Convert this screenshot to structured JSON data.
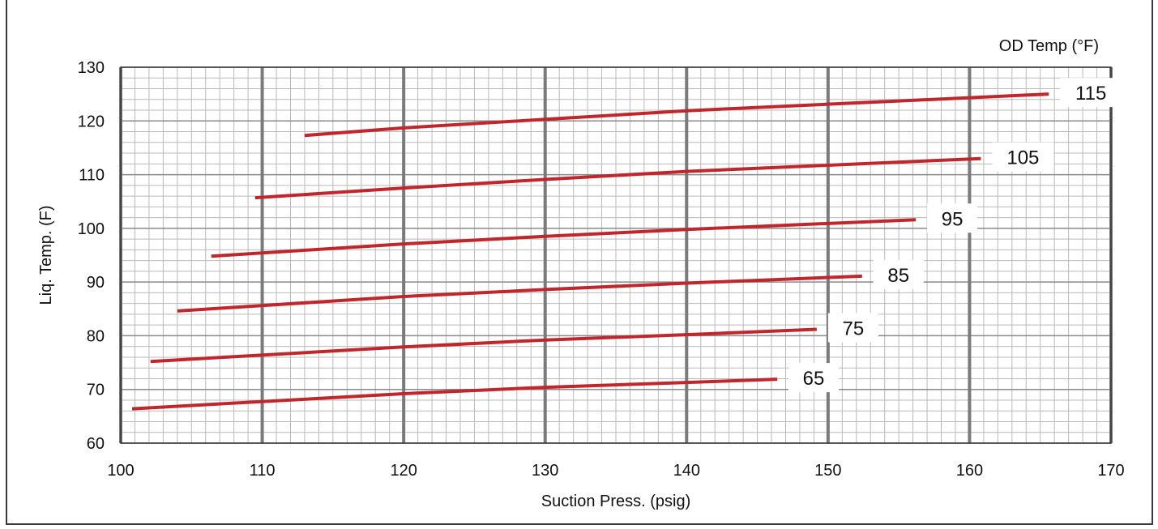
{
  "chart_data": {
    "type": "line",
    "title": "",
    "xlabel": "Suction Press. (psig)",
    "ylabel": "Liq. Temp. (F)",
    "legend_title": "OD Temp (°F)",
    "xlim": [
      100,
      170
    ],
    "ylim": [
      60,
      130
    ],
    "x_ticks": [
      100,
      110,
      120,
      130,
      140,
      150,
      160,
      170
    ],
    "y_ticks": [
      60,
      70,
      80,
      90,
      100,
      110,
      120,
      130
    ],
    "minor_grid_x": 1,
    "minor_grid_y": 2,
    "grid": true,
    "line_color": "#c0272d",
    "series": [
      {
        "name": "65",
        "points": [
          [
            100.8,
            66.4
          ],
          [
            120,
            69.2
          ],
          [
            130,
            70.4
          ],
          [
            140,
            71.3
          ],
          [
            146.4,
            71.9
          ]
        ]
      },
      {
        "name": "75",
        "points": [
          [
            102.1,
            75.2
          ],
          [
            120,
            77.9
          ],
          [
            130,
            79.2
          ],
          [
            140,
            80.2
          ],
          [
            149.2,
            81.2
          ]
        ]
      },
      {
        "name": "85",
        "points": [
          [
            104.0,
            84.6
          ],
          [
            120,
            87.3
          ],
          [
            130,
            88.6
          ],
          [
            140,
            89.8
          ],
          [
            152.4,
            91.1
          ]
        ]
      },
      {
        "name": "95",
        "points": [
          [
            106.4,
            94.8
          ],
          [
            120,
            97.1
          ],
          [
            130,
            98.5
          ],
          [
            140,
            99.8
          ],
          [
            156.2,
            101.6
          ]
        ]
      },
      {
        "name": "105",
        "points": [
          [
            109.5,
            105.7
          ],
          [
            120,
            107.5
          ],
          [
            130,
            109.1
          ],
          [
            140,
            110.6
          ],
          [
            160.8,
            113.0
          ]
        ]
      },
      {
        "name": "115",
        "points": [
          [
            113.0,
            117.3
          ],
          [
            120,
            118.7
          ],
          [
            130,
            120.3
          ],
          [
            140,
            121.9
          ],
          [
            165.6,
            125.0
          ]
        ]
      }
    ]
  }
}
